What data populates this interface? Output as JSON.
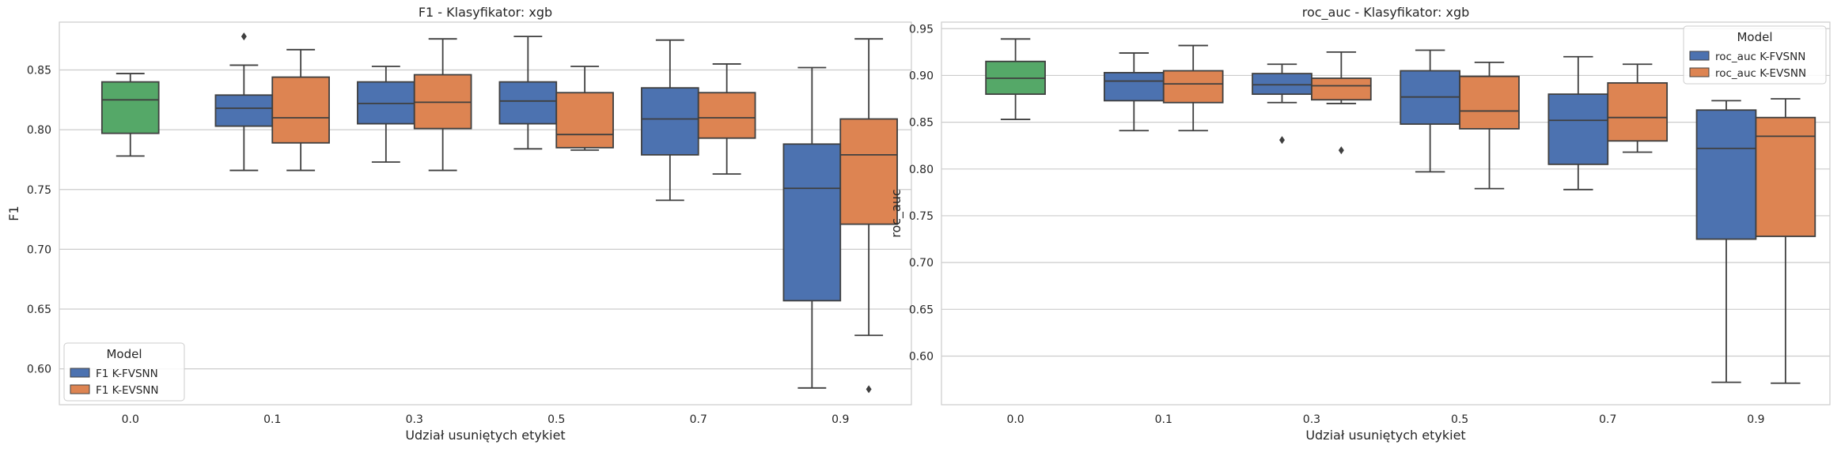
{
  "chart_data": [
    {
      "type": "box",
      "title": "F1 - Klasyfikator: xgb",
      "xlabel": "Udział usuniętych etykiet",
      "ylabel": "F1",
      "categories": [
        "0.0",
        "0.1",
        "0.3",
        "0.5",
        "0.7",
        "0.9"
      ],
      "ylim": [
        0.57,
        0.89
      ],
      "yticks": [
        "0.60",
        "0.65",
        "0.70",
        "0.75",
        "0.80",
        "0.85"
      ],
      "grid": true,
      "legend": {
        "title": "Model",
        "placement": "lower-left",
        "entries": [
          "F1 K-FVSNN",
          "F1 K-EVSNN"
        ]
      },
      "baseline": {
        "category": "0.0",
        "min": 0.778,
        "q1": 0.797,
        "median": 0.825,
        "q3": 0.84,
        "max": 0.847,
        "outliers": []
      },
      "series": [
        {
          "name": "F1 K-FVSNN",
          "color": "#4c72b0",
          "boxes": [
            {
              "category": "0.1",
              "min": 0.766,
              "q1": 0.803,
              "median": 0.818,
              "q3": 0.829,
              "max": 0.854,
              "outliers": [
                0.878
              ]
            },
            {
              "category": "0.3",
              "min": 0.773,
              "q1": 0.805,
              "median": 0.822,
              "q3": 0.84,
              "max": 0.853,
              "outliers": []
            },
            {
              "category": "0.5",
              "min": 0.784,
              "q1": 0.805,
              "median": 0.824,
              "q3": 0.84,
              "max": 0.878,
              "outliers": []
            },
            {
              "category": "0.7",
              "min": 0.741,
              "q1": 0.779,
              "median": 0.809,
              "q3": 0.835,
              "max": 0.875,
              "outliers": []
            },
            {
              "category": "0.9",
              "min": 0.584,
              "q1": 0.657,
              "median": 0.751,
              "q3": 0.788,
              "max": 0.852,
              "outliers": []
            }
          ]
        },
        {
          "name": "F1 K-EVSNN",
          "color": "#dd8452",
          "boxes": [
            {
              "category": "0.1",
              "min": 0.766,
              "q1": 0.789,
              "median": 0.81,
              "q3": 0.844,
              "max": 0.867,
              "outliers": []
            },
            {
              "category": "0.3",
              "min": 0.766,
              "q1": 0.801,
              "median": 0.823,
              "q3": 0.846,
              "max": 0.876,
              "outliers": []
            },
            {
              "category": "0.5",
              "min": 0.783,
              "q1": 0.785,
              "median": 0.796,
              "q3": 0.831,
              "max": 0.853,
              "outliers": []
            },
            {
              "category": "0.7",
              "min": 0.763,
              "q1": 0.793,
              "median": 0.81,
              "q3": 0.831,
              "max": 0.855,
              "outliers": []
            },
            {
              "category": "0.9",
              "min": 0.628,
              "q1": 0.721,
              "median": 0.779,
              "q3": 0.809,
              "max": 0.876,
              "outliers": [
                0.583
              ]
            }
          ]
        }
      ]
    },
    {
      "type": "box",
      "title": "roc_auc - Klasyfikator: xgb",
      "xlabel": "Udział usuniętych etykiet",
      "ylabel": "roc_auc",
      "categories": [
        "0.0",
        "0.1",
        "0.3",
        "0.5",
        "0.7",
        "0.9"
      ],
      "ylim": [
        0.548,
        0.957
      ],
      "yticks": [
        "0.60",
        "0.65",
        "0.70",
        "0.75",
        "0.80",
        "0.85",
        "0.90",
        "0.95"
      ],
      "grid": true,
      "legend": {
        "title": "Model",
        "placement": "upper-right",
        "entries": [
          "roc_auc K-FVSNN",
          "roc_auc K-EVSNN"
        ]
      },
      "baseline": {
        "category": "0.0",
        "min": 0.853,
        "q1": 0.88,
        "median": 0.897,
        "q3": 0.915,
        "max": 0.939,
        "outliers": []
      },
      "series": [
        {
          "name": "roc_auc K-FVSNN",
          "color": "#4c72b0",
          "boxes": [
            {
              "category": "0.1",
              "min": 0.841,
              "q1": 0.873,
              "median": 0.894,
              "q3": 0.903,
              "max": 0.924,
              "outliers": []
            },
            {
              "category": "0.3",
              "min": 0.871,
              "q1": 0.88,
              "median": 0.89,
              "q3": 0.902,
              "max": 0.912,
              "outliers": [
                0.831
              ]
            },
            {
              "category": "0.5",
              "min": 0.797,
              "q1": 0.848,
              "median": 0.877,
              "q3": 0.905,
              "max": 0.927,
              "outliers": []
            },
            {
              "category": "0.7",
              "min": 0.778,
              "q1": 0.805,
              "median": 0.852,
              "q3": 0.88,
              "max": 0.92,
              "outliers": []
            },
            {
              "category": "0.9",
              "min": 0.572,
              "q1": 0.725,
              "median": 0.822,
              "q3": 0.863,
              "max": 0.873,
              "outliers": []
            }
          ]
        },
        {
          "name": "roc_auc K-EVSNN",
          "color": "#dd8452",
          "boxes": [
            {
              "category": "0.1",
              "min": 0.841,
              "q1": 0.871,
              "median": 0.891,
              "q3": 0.905,
              "max": 0.932,
              "outliers": []
            },
            {
              "category": "0.3",
              "min": 0.87,
              "q1": 0.874,
              "median": 0.889,
              "q3": 0.897,
              "max": 0.925,
              "outliers": [
                0.82
              ]
            },
            {
              "category": "0.5",
              "min": 0.779,
              "q1": 0.843,
              "median": 0.862,
              "q3": 0.899,
              "max": 0.914,
              "outliers": []
            },
            {
              "category": "0.7",
              "min": 0.818,
              "q1": 0.83,
              "median": 0.855,
              "q3": 0.892,
              "max": 0.912,
              "outliers": []
            },
            {
              "category": "0.9",
              "min": 0.571,
              "q1": 0.728,
              "median": 0.835,
              "q3": 0.855,
              "max": 0.875,
              "outliers": []
            }
          ]
        }
      ]
    }
  ],
  "colors": {
    "baseline": "#55a868",
    "grid": "#cccccc",
    "axes": "#cccccc",
    "edge": "#3f3f3f"
  }
}
